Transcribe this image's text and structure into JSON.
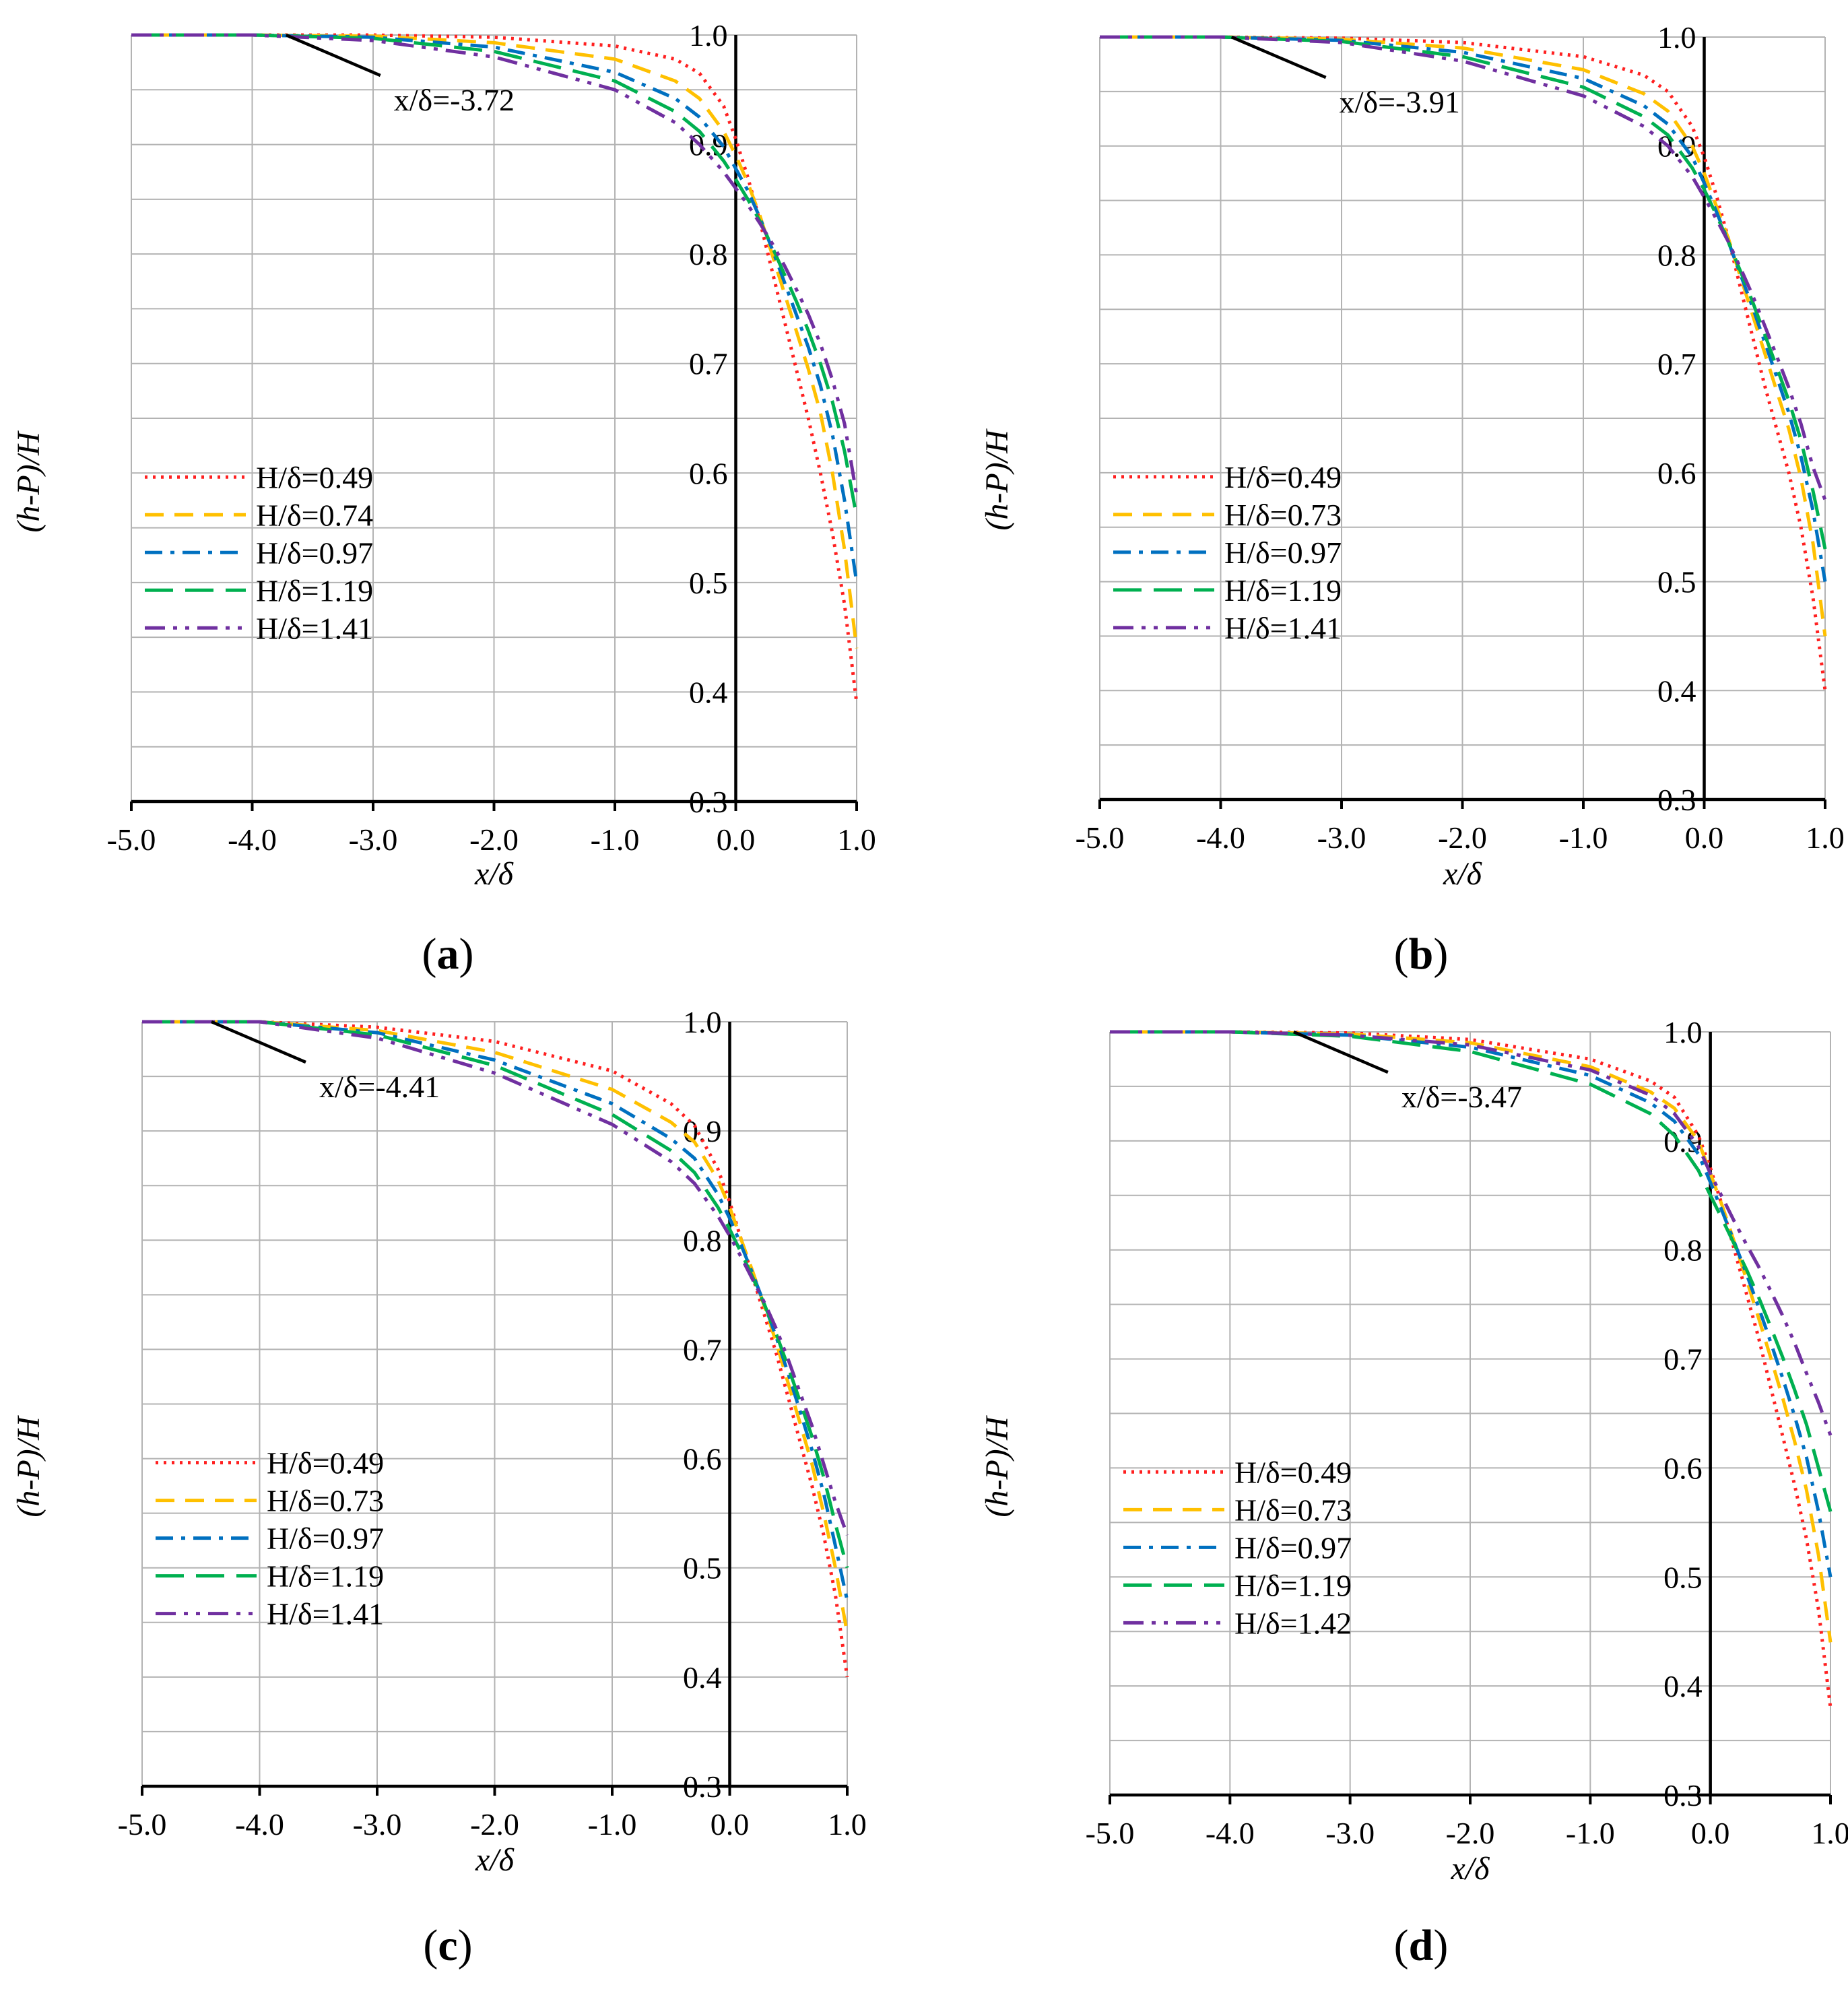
{
  "figure_title": "Dimensionless free-surface profiles (h-P)/H versus x/δ for four cases",
  "colors": {
    "H049": "#ff2020",
    "H07": "#ffc000",
    "H097": "#0070c0",
    "H119": "#00b050",
    "H141": "#7030a0",
    "grid": "#b3b3b3",
    "axis": "#000000"
  },
  "chart_data": [
    {
      "type": "line",
      "panel": "a",
      "panel_label": "(a)",
      "panel_letter": "a",
      "xlabel": "x/δ",
      "ylabel": "(h-P)/H",
      "xlim": [
        -5.0,
        1.0
      ],
      "ylim": [
        0.3,
        1.0
      ],
      "x_ticks": [
        "-5.0",
        "-4.0",
        "-3.0",
        "-2.0",
        "-1.0",
        "0.0",
        "1.0"
      ],
      "y_ticks": [
        "1.0",
        "0.9",
        "0.8",
        "0.7",
        "0.6",
        "0.5",
        "0.4",
        "0.3"
      ],
      "annotation": {
        "text": "x/δ=-3.72",
        "x": -3.72,
        "y": 1.0
      },
      "series": [
        {
          "name": "H/δ=0.49",
          "style": "dotted",
          "color": "#ff2020",
          "x": [
            -5.0,
            -4.0,
            -3.0,
            -2.0,
            -1.0,
            -0.5,
            -0.3,
            -0.1,
            0.0,
            0.1,
            0.2,
            0.3,
            0.4,
            0.5,
            0.6,
            0.7,
            0.8,
            0.9,
            1.0
          ],
          "y": [
            1.0,
            1.0,
            1.0,
            0.998,
            0.99,
            0.978,
            0.965,
            0.935,
            0.905,
            0.87,
            0.83,
            0.785,
            0.74,
            0.695,
            0.65,
            0.6,
            0.545,
            0.48,
            0.39
          ]
        },
        {
          "name": "H/δ=0.74",
          "style": "dashed",
          "color": "#ffc000",
          "x": [
            -5.0,
            -4.0,
            -3.0,
            -2.0,
            -1.0,
            -0.5,
            -0.3,
            -0.1,
            0.0,
            0.1,
            0.2,
            0.3,
            0.4,
            0.5,
            0.6,
            0.7,
            0.8,
            0.9,
            1.0
          ],
          "y": [
            1.0,
            1.0,
            0.999,
            0.993,
            0.978,
            0.958,
            0.942,
            0.912,
            0.89,
            0.865,
            0.835,
            0.8,
            0.765,
            0.73,
            0.695,
            0.655,
            0.6,
            0.53,
            0.44
          ]
        },
        {
          "name": "H/δ=0.97",
          "style": "dashdot",
          "color": "#0070c0",
          "x": [
            -5.0,
            -4.0,
            -3.0,
            -2.0,
            -1.0,
            -0.5,
            -0.3,
            -0.1,
            0.0,
            0.1,
            0.2,
            0.3,
            0.4,
            0.5,
            0.6,
            0.7,
            0.8,
            0.9,
            1.0
          ],
          "y": [
            1.0,
            1.0,
            0.998,
            0.989,
            0.966,
            0.942,
            0.925,
            0.898,
            0.878,
            0.858,
            0.833,
            0.805,
            0.775,
            0.745,
            0.715,
            0.68,
            0.635,
            0.575,
            0.5
          ]
        },
        {
          "name": "H/δ=1.19",
          "style": "longdash",
          "color": "#00b050",
          "x": [
            -5.0,
            -4.0,
            -3.0,
            -2.0,
            -1.0,
            -0.5,
            -0.3,
            -0.1,
            0.0,
            0.1,
            0.2,
            0.3,
            0.4,
            0.5,
            0.6,
            0.7,
            0.8,
            0.9,
            1.0
          ],
          "y": [
            1.0,
            1.0,
            0.997,
            0.985,
            0.958,
            0.93,
            0.912,
            0.885,
            0.868,
            0.85,
            0.83,
            0.807,
            0.782,
            0.757,
            0.73,
            0.7,
            0.665,
            0.62,
            0.56
          ]
        },
        {
          "name": "H/δ=1.41",
          "style": "dashdotdot",
          "color": "#7030a0",
          "x": [
            -5.0,
            -4.0,
            -3.0,
            -2.0,
            -1.0,
            -0.5,
            -0.3,
            -0.1,
            0.0,
            0.1,
            0.2,
            0.3,
            0.4,
            0.5,
            0.6,
            0.7,
            0.8,
            0.9,
            1.0
          ],
          "y": [
            1.0,
            1.0,
            0.995,
            0.98,
            0.95,
            0.92,
            0.9,
            0.875,
            0.86,
            0.845,
            0.828,
            0.81,
            0.79,
            0.768,
            0.745,
            0.718,
            0.685,
            0.645,
            0.58
          ]
        }
      ]
    },
    {
      "type": "line",
      "panel": "b",
      "panel_label": "(b)",
      "panel_letter": "b",
      "xlabel": "x/δ",
      "ylabel": "(h-P)/H",
      "xlim": [
        -5.0,
        1.0
      ],
      "ylim": [
        0.3,
        1.0
      ],
      "x_ticks": [
        "-5.0",
        "-4.0",
        "-3.0",
        "-2.0",
        "-1.0",
        "0.0",
        "1.0"
      ],
      "y_ticks": [
        "1.0",
        "0.9",
        "0.8",
        "0.7",
        "0.6",
        "0.5",
        "0.4",
        "0.3"
      ],
      "annotation": {
        "text": "x/δ=-3.91",
        "x": -3.91,
        "y": 1.0
      },
      "series": [
        {
          "name": "H/δ=0.49",
          "style": "dotted",
          "color": "#ff2020",
          "x": [
            -5.0,
            -4.0,
            -3.0,
            -2.0,
            -1.0,
            -0.5,
            -0.3,
            -0.1,
            0.0,
            0.1,
            0.2,
            0.3,
            0.4,
            0.5,
            0.6,
            0.7,
            0.8,
            0.9,
            1.0
          ],
          "y": [
            1.0,
            1.0,
            0.999,
            0.995,
            0.982,
            0.965,
            0.95,
            0.918,
            0.89,
            0.855,
            0.815,
            0.77,
            0.725,
            0.68,
            0.64,
            0.6,
            0.55,
            0.485,
            0.4
          ]
        },
        {
          "name": "H/δ=0.73",
          "style": "dashed",
          "color": "#ffc000",
          "x": [
            -5.0,
            -4.0,
            -3.0,
            -2.0,
            -1.0,
            -0.5,
            -0.3,
            -0.1,
            0.0,
            0.1,
            0.2,
            0.3,
            0.4,
            0.5,
            0.6,
            0.7,
            0.8,
            0.9,
            1.0
          ],
          "y": [
            1.0,
            1.0,
            0.998,
            0.99,
            0.97,
            0.948,
            0.932,
            0.9,
            0.875,
            0.845,
            0.815,
            0.78,
            0.745,
            0.71,
            0.675,
            0.64,
            0.595,
            0.535,
            0.45
          ]
        },
        {
          "name": "H/δ=0.97",
          "style": "dashdot",
          "color": "#0070c0",
          "x": [
            -5.0,
            -4.0,
            -3.0,
            -2.0,
            -1.0,
            -0.5,
            -0.3,
            -0.1,
            0.0,
            0.1,
            0.2,
            0.3,
            0.4,
            0.5,
            0.6,
            0.7,
            0.8,
            0.9,
            1.0
          ],
          "y": [
            1.0,
            1.0,
            0.997,
            0.986,
            0.962,
            0.937,
            0.92,
            0.89,
            0.866,
            0.84,
            0.812,
            0.782,
            0.752,
            0.72,
            0.688,
            0.655,
            0.615,
            0.565,
            0.5
          ]
        },
        {
          "name": "H/δ=1.19",
          "style": "longdash",
          "color": "#00b050",
          "x": [
            -5.0,
            -4.0,
            -3.0,
            -2.0,
            -1.0,
            -0.5,
            -0.3,
            -0.1,
            0.0,
            0.1,
            0.2,
            0.3,
            0.4,
            0.5,
            0.6,
            0.7,
            0.8,
            0.9,
            1.0
          ],
          "y": [
            1.0,
            1.0,
            0.996,
            0.982,
            0.954,
            0.927,
            0.91,
            0.88,
            0.86,
            0.837,
            0.812,
            0.785,
            0.757,
            0.727,
            0.697,
            0.666,
            0.63,
            0.583,
            0.53
          ]
        },
        {
          "name": "H/δ=1.41",
          "style": "dashdotdot",
          "color": "#7030a0",
          "x": [
            -5.0,
            -4.0,
            -3.0,
            -2.0,
            -1.0,
            -0.5,
            -0.3,
            -0.1,
            0.0,
            0.1,
            0.2,
            0.3,
            0.4,
            0.5,
            0.6,
            0.7,
            0.8,
            0.9,
            1.0
          ],
          "y": [
            1.0,
            1.0,
            0.995,
            0.978,
            0.946,
            0.918,
            0.9,
            0.872,
            0.853,
            0.833,
            0.812,
            0.788,
            0.763,
            0.735,
            0.707,
            0.678,
            0.645,
            0.605,
            0.575
          ]
        }
      ]
    },
    {
      "type": "line",
      "panel": "c",
      "panel_label": "(c)",
      "panel_letter": "c",
      "xlabel": "x/δ",
      "ylabel": "(h-P)/H",
      "xlim": [
        -5.0,
        1.0
      ],
      "ylim": [
        0.3,
        1.0
      ],
      "x_ticks": [
        "-5.0",
        "-4.0",
        "-3.0",
        "-2.0",
        "-1.0",
        "0.0",
        "1.0"
      ],
      "y_ticks": [
        "1.0",
        "0.9",
        "0.8",
        "0.7",
        "0.6",
        "0.5",
        "0.4",
        "0.3"
      ],
      "annotation": {
        "text": "x/δ=-4.41",
        "x": -4.41,
        "y": 1.0
      },
      "series": [
        {
          "name": "H/δ=0.49",
          "style": "dotted",
          "color": "#ff2020",
          "x": [
            -5.0,
            -4.0,
            -3.0,
            -2.0,
            -1.0,
            -0.5,
            -0.3,
            -0.1,
            0.0,
            0.1,
            0.2,
            0.3,
            0.4,
            0.5,
            0.6,
            0.7,
            0.8,
            0.9,
            1.0
          ],
          "y": [
            1.0,
            1.0,
            0.995,
            0.982,
            0.955,
            0.925,
            0.905,
            0.865,
            0.835,
            0.8,
            0.765,
            0.73,
            0.695,
            0.655,
            0.615,
            0.575,
            0.53,
            0.475,
            0.4
          ]
        },
        {
          "name": "H/δ=0.73",
          "style": "dashed",
          "color": "#ffc000",
          "x": [
            -5.0,
            -4.0,
            -3.0,
            -2.0,
            -1.0,
            -0.5,
            -0.3,
            -0.1,
            0.0,
            0.1,
            0.2,
            0.3,
            0.4,
            0.5,
            0.6,
            0.7,
            0.8,
            0.9,
            1.0
          ],
          "y": [
            1.0,
            1.0,
            0.992,
            0.972,
            0.938,
            0.908,
            0.89,
            0.855,
            0.83,
            0.8,
            0.77,
            0.738,
            0.705,
            0.668,
            0.632,
            0.595,
            0.55,
            0.5,
            0.44
          ]
        },
        {
          "name": "H/δ=0.97",
          "style": "dashdot",
          "color": "#0070c0",
          "x": [
            -5.0,
            -4.0,
            -3.0,
            -2.0,
            -1.0,
            -0.5,
            -0.3,
            -0.1,
            0.0,
            0.1,
            0.2,
            0.3,
            0.4,
            0.5,
            0.6,
            0.7,
            0.8,
            0.9,
            1.0
          ],
          "y": [
            1.0,
            1.0,
            0.99,
            0.965,
            0.925,
            0.893,
            0.875,
            0.842,
            0.82,
            0.795,
            0.768,
            0.74,
            0.71,
            0.677,
            0.643,
            0.608,
            0.568,
            0.52,
            0.47
          ]
        },
        {
          "name": "H/δ=1.19",
          "style": "longdash",
          "color": "#00b050",
          "x": [
            -5.0,
            -4.0,
            -3.0,
            -2.0,
            -1.0,
            -0.5,
            -0.3,
            -0.1,
            0.0,
            0.1,
            0.2,
            0.3,
            0.4,
            0.5,
            0.6,
            0.7,
            0.8,
            0.9,
            1.0
          ],
          "y": [
            1.0,
            1.0,
            0.988,
            0.96,
            0.915,
            0.882,
            0.862,
            0.83,
            0.81,
            0.788,
            0.765,
            0.74,
            0.713,
            0.683,
            0.652,
            0.62,
            0.583,
            0.54,
            0.5
          ]
        },
        {
          "name": "H/δ=1.41",
          "style": "dashdotdot",
          "color": "#7030a0",
          "x": [
            -5.0,
            -4.0,
            -3.0,
            -2.0,
            -1.0,
            -0.5,
            -0.3,
            -0.1,
            0.0,
            0.1,
            0.2,
            0.3,
            0.4,
            0.5,
            0.6,
            0.7,
            0.8,
            0.9,
            1.0
          ],
          "y": [
            1.0,
            1.0,
            0.985,
            0.953,
            0.906,
            0.872,
            0.852,
            0.822,
            0.804,
            0.784,
            0.763,
            0.742,
            0.718,
            0.69,
            0.66,
            0.63,
            0.595,
            0.56,
            0.53
          ]
        }
      ]
    },
    {
      "type": "line",
      "panel": "d",
      "panel_label": "(d)",
      "panel_letter": "d",
      "xlabel": "x/δ",
      "ylabel": "(h-P)/H",
      "xlim": [
        -5.0,
        1.0
      ],
      "ylim": [
        0.3,
        1.0
      ],
      "x_ticks": [
        "-5.0",
        "-4.0",
        "-3.0",
        "-2.0",
        "-1.0",
        "0.0",
        "1.0"
      ],
      "y_ticks": [
        "1.0",
        "0.9",
        "0.8",
        "0.7",
        "0.6",
        "0.5",
        "0.4",
        "0.3"
      ],
      "annotation": {
        "text": "x/δ=-3.47",
        "x": -3.47,
        "y": 1.0
      },
      "series": [
        {
          "name": "H/δ=0.49",
          "style": "dotted",
          "color": "#ff2020",
          "x": [
            -5.0,
            -4.0,
            -3.0,
            -2.0,
            -1.0,
            -0.5,
            -0.3,
            -0.1,
            0.0,
            0.1,
            0.2,
            0.3,
            0.4,
            0.5,
            0.6,
            0.7,
            0.8,
            0.9,
            1.0
          ],
          "y": [
            1.0,
            1.0,
            0.999,
            0.993,
            0.975,
            0.955,
            0.94,
            0.905,
            0.875,
            0.84,
            0.8,
            0.76,
            0.72,
            0.675,
            0.63,
            0.585,
            0.535,
            0.47,
            0.38
          ]
        },
        {
          "name": "H/δ=0.73",
          "style": "dashed",
          "color": "#ffc000",
          "x": [
            -5.0,
            -4.0,
            -3.0,
            -2.0,
            -1.0,
            -0.5,
            -0.3,
            -0.1,
            0.0,
            0.1,
            0.2,
            0.3,
            0.4,
            0.5,
            0.6,
            0.7,
            0.8,
            0.9,
            1.0
          ],
          "y": [
            1.0,
            1.0,
            0.998,
            0.99,
            0.968,
            0.945,
            0.93,
            0.9,
            0.87,
            0.84,
            0.807,
            0.773,
            0.738,
            0.702,
            0.665,
            0.625,
            0.58,
            0.52,
            0.44
          ]
        },
        {
          "name": "H/δ=0.97",
          "style": "dashdot",
          "color": "#0070c0",
          "x": [
            -5.0,
            -4.0,
            -3.0,
            -2.0,
            -1.0,
            -0.5,
            -0.3,
            -0.1,
            0.0,
            0.1,
            0.2,
            0.3,
            0.4,
            0.5,
            0.6,
            0.7,
            0.8,
            0.9,
            1.0
          ],
          "y": [
            1.0,
            1.0,
            0.997,
            0.986,
            0.96,
            0.935,
            0.918,
            0.888,
            0.862,
            0.835,
            0.807,
            0.778,
            0.748,
            0.716,
            0.683,
            0.648,
            0.61,
            0.56,
            0.5
          ]
        },
        {
          "name": "H/δ=1.19",
          "style": "longdash",
          "color": "#00b050",
          "x": [
            -5.0,
            -4.0,
            -3.0,
            -2.0,
            -1.0,
            -0.5,
            -0.3,
            -0.1,
            0.0,
            0.1,
            0.2,
            0.3,
            0.4,
            0.5,
            0.6,
            0.7,
            0.8,
            0.9,
            1.0
          ],
          "y": [
            1.0,
            1.0,
            0.996,
            0.982,
            0.952,
            0.925,
            0.905,
            0.873,
            0.85,
            0.828,
            0.805,
            0.782,
            0.757,
            0.73,
            0.702,
            0.672,
            0.64,
            0.6,
            0.56
          ]
        },
        {
          "name": "H/δ=1.42",
          "style": "dashdotdot",
          "color": "#7030a0",
          "x": [
            -5.0,
            -4.0,
            -3.0,
            -2.0,
            -1.0,
            -0.5,
            -0.3,
            -0.1,
            0.0,
            0.1,
            0.2,
            0.3,
            0.4,
            0.5,
            0.6,
            0.7,
            0.8,
            0.9,
            1.0
          ],
          "y": [
            1.0,
            1.0,
            0.997,
            0.988,
            0.965,
            0.942,
            0.925,
            0.895,
            0.87,
            0.848,
            0.826,
            0.805,
            0.785,
            0.763,
            0.74,
            0.715,
            0.687,
            0.66,
            0.63
          ]
        }
      ]
    }
  ]
}
